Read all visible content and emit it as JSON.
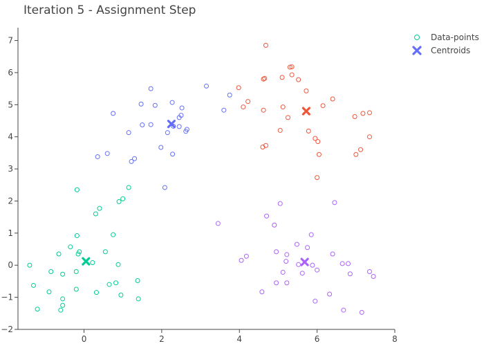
{
  "chart_data": {
    "type": "scatter",
    "title": "Iteration 5 - Assignment Step",
    "xlabel": "",
    "ylabel": "",
    "xlim": [
      -1.7,
      8
    ],
    "ylim": [
      -2,
      7.4
    ],
    "x_ticks": [
      0,
      2,
      4,
      6,
      8
    ],
    "y_ticks": [
      -2,
      -1,
      0,
      1,
      2,
      3,
      4,
      5,
      6,
      7
    ],
    "grid": false,
    "legend_position": "top-right",
    "legend": [
      {
        "label": "Data-points",
        "marker": "circle-open",
        "color": "#00cc96"
      },
      {
        "label": "Centroids",
        "marker": "x",
        "color": "#636efa"
      }
    ],
    "clusters": [
      {
        "color": "#00cc96",
        "points": [
          [
            -1.4,
            0.0
          ],
          [
            -1.3,
            -0.63
          ],
          [
            -1.2,
            -1.37
          ],
          [
            -0.9,
            -0.83
          ],
          [
            -0.85,
            -0.2
          ],
          [
            -0.65,
            0.35
          ],
          [
            -0.6,
            -1.4
          ],
          [
            -0.55,
            -1.05
          ],
          [
            -0.55,
            -1.25
          ],
          [
            -0.55,
            -0.28
          ],
          [
            -0.35,
            0.57
          ],
          [
            -0.2,
            -0.2
          ],
          [
            -0.2,
            -0.75
          ],
          [
            -0.18,
            2.35
          ],
          [
            -0.18,
            0.92
          ],
          [
            -0.15,
            0.35
          ],
          [
            -0.12,
            0.42
          ],
          [
            0.22,
            0.08
          ],
          [
            0.3,
            1.6
          ],
          [
            0.32,
            -0.85
          ],
          [
            0.4,
            1.77
          ],
          [
            0.55,
            0.42
          ],
          [
            0.65,
            -0.6
          ],
          [
            0.75,
            0.95
          ],
          [
            0.82,
            -0.55
          ],
          [
            0.88,
            0.02
          ],
          [
            0.9,
            1.98
          ],
          [
            0.95,
            -0.93
          ],
          [
            1.0,
            2.07
          ],
          [
            1.15,
            2.42
          ],
          [
            1.38,
            -0.48
          ],
          [
            1.4,
            -1.05
          ]
        ],
        "centroid": [
          0.05,
          0.12
        ]
      },
      {
        "color": "#636efa",
        "points": [
          [
            0.35,
            3.38
          ],
          [
            0.6,
            3.48
          ],
          [
            0.75,
            4.73
          ],
          [
            1.15,
            4.13
          ],
          [
            1.22,
            3.23
          ],
          [
            1.3,
            3.32
          ],
          [
            1.47,
            5.02
          ],
          [
            1.5,
            4.37
          ],
          [
            1.72,
            5.5
          ],
          [
            1.72,
            4.38
          ],
          [
            1.83,
            4.98
          ],
          [
            1.98,
            3.67
          ],
          [
            2.08,
            2.42
          ],
          [
            2.15,
            4.13
          ],
          [
            2.27,
            5.07
          ],
          [
            2.28,
            3.46
          ],
          [
            2.3,
            4.33
          ],
          [
            2.45,
            4.6
          ],
          [
            2.45,
            4.32
          ],
          [
            2.5,
            4.67
          ],
          [
            2.52,
            4.9
          ],
          [
            2.62,
            4.17
          ],
          [
            2.65,
            4.23
          ],
          [
            3.15,
            5.58
          ],
          [
            3.6,
            4.83
          ],
          [
            3.75,
            5.3
          ]
        ],
        "centroid": [
          2.25,
          4.4
        ]
      },
      {
        "color": "#ef553b",
        "points": [
          [
            3.98,
            5.53
          ],
          [
            4.1,
            4.93
          ],
          [
            4.22,
            5.1
          ],
          [
            4.6,
            3.68
          ],
          [
            4.62,
            4.83
          ],
          [
            4.62,
            5.8
          ],
          [
            4.65,
            5.82
          ],
          [
            4.68,
            6.85
          ],
          [
            4.68,
            3.73
          ],
          [
            5.05,
            4.2
          ],
          [
            5.1,
            5.85
          ],
          [
            5.12,
            4.93
          ],
          [
            5.25,
            4.6
          ],
          [
            5.3,
            6.17
          ],
          [
            5.35,
            6.18
          ],
          [
            5.35,
            5.93
          ],
          [
            5.52,
            5.78
          ],
          [
            5.72,
            5.43
          ],
          [
            5.78,
            4.18
          ],
          [
            5.95,
            3.95
          ],
          [
            6.0,
            2.73
          ],
          [
            6.02,
            3.85
          ],
          [
            6.05,
            3.45
          ],
          [
            6.15,
            4.97
          ],
          [
            6.4,
            5.18
          ],
          [
            6.97,
            4.63
          ],
          [
            7.0,
            3.45
          ],
          [
            7.12,
            3.6
          ],
          [
            7.18,
            4.73
          ],
          [
            7.35,
            4.75
          ],
          [
            7.35,
            4.0
          ]
        ],
        "centroid": [
          5.72,
          4.8
        ]
      },
      {
        "color": "#ab63fa",
        "points": [
          [
            3.45,
            1.3
          ],
          [
            4.05,
            0.15
          ],
          [
            4.18,
            0.28
          ],
          [
            4.58,
            -0.83
          ],
          [
            4.7,
            1.53
          ],
          [
            4.9,
            1.25
          ],
          [
            4.95,
            0.42
          ],
          [
            4.95,
            -0.55
          ],
          [
            5.05,
            1.92
          ],
          [
            5.12,
            -0.22
          ],
          [
            5.2,
            0.12
          ],
          [
            5.22,
            0.33
          ],
          [
            5.22,
            -0.55
          ],
          [
            5.48,
            0.65
          ],
          [
            5.52,
            0.02
          ],
          [
            5.62,
            -0.25
          ],
          [
            5.75,
            0.55
          ],
          [
            5.85,
            0.95
          ],
          [
            5.88,
            0.0
          ],
          [
            5.95,
            -1.12
          ],
          [
            6.0,
            -0.15
          ],
          [
            6.32,
            -0.9
          ],
          [
            6.4,
            0.35
          ],
          [
            6.45,
            1.95
          ],
          [
            6.65,
            0.05
          ],
          [
            6.68,
            -1.4
          ],
          [
            6.8,
            0.05
          ],
          [
            6.85,
            -0.27
          ],
          [
            7.15,
            -1.47
          ],
          [
            7.35,
            -0.2
          ],
          [
            7.45,
            -0.35
          ]
        ],
        "centroid": [
          5.68,
          0.1
        ]
      }
    ]
  }
}
